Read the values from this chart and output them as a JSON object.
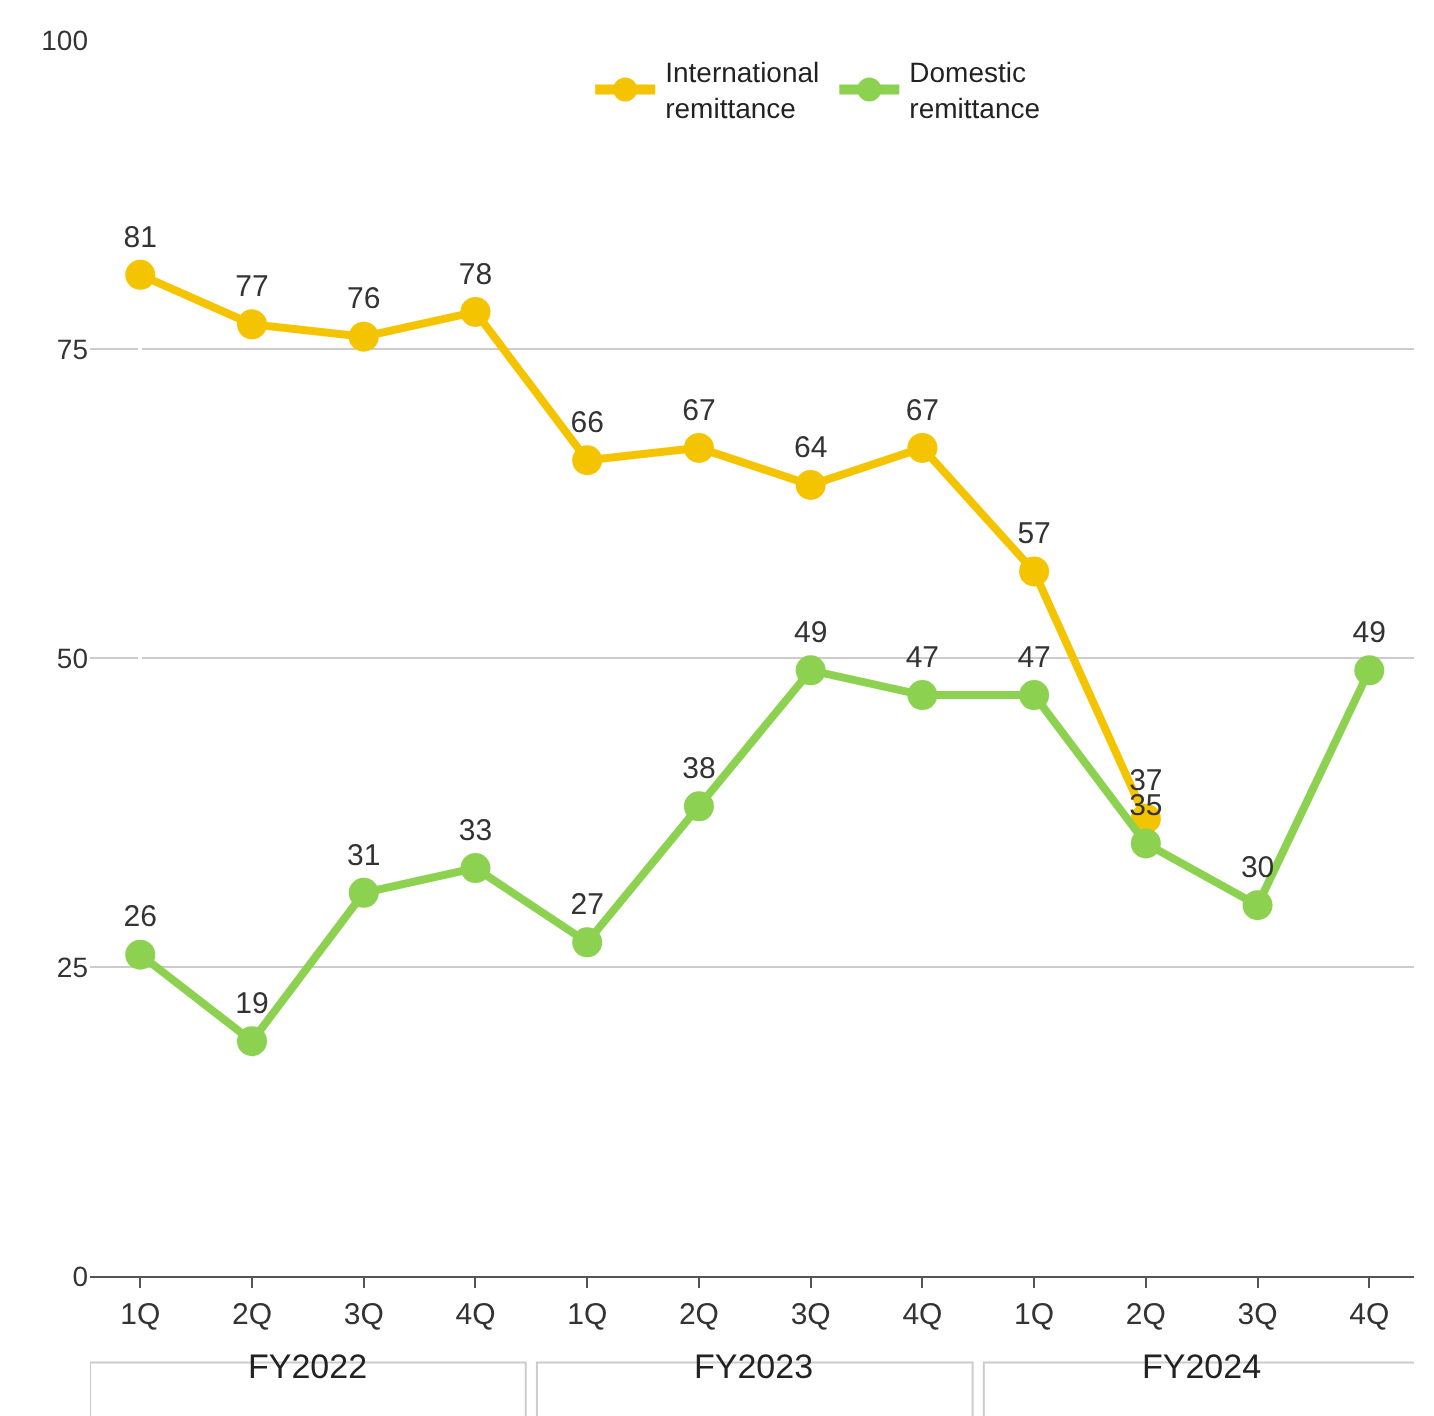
{
  "chart_data": {
    "type": "line",
    "categories": [
      "1Q",
      "2Q",
      "3Q",
      "4Q",
      "1Q",
      "2Q",
      "3Q",
      "4Q",
      "1Q",
      "2Q",
      "3Q",
      "4Q"
    ],
    "series": [
      {
        "name": "International remittance",
        "color": "#f5c400",
        "values": [
          81,
          77,
          76,
          78,
          66,
          67,
          64,
          67,
          57,
          37,
          null,
          null
        ]
      },
      {
        "name": "Domestic remittance",
        "color": "#8cd150",
        "values": [
          26,
          19,
          31,
          33,
          27,
          38,
          49,
          47,
          47,
          35,
          30,
          49
        ]
      }
    ],
    "annotations": [
      "FY2022",
      "FY2023",
      "FY2024"
    ],
    "ylim": [
      0,
      100
    ],
    "yticks": [
      0,
      25,
      50,
      75,
      100
    ],
    "grid": "y",
    "legend": "top",
    "marker": "circle",
    "line_style": "solid",
    "data_labels": true
  }
}
